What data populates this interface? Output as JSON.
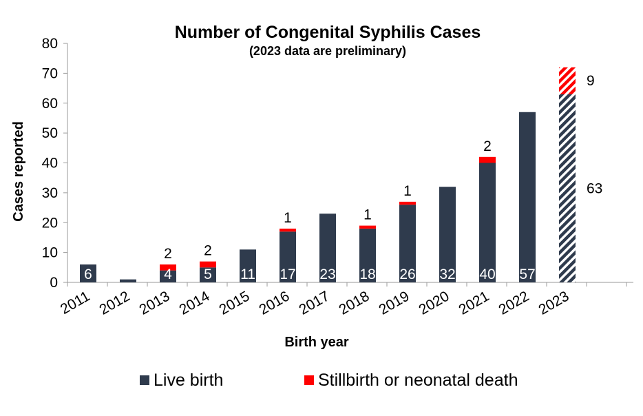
{
  "chart_data": {
    "type": "bar",
    "stacked": true,
    "title": "Number of Congenital Syphilis Cases",
    "subtitle": "(2023 data are preliminary)",
    "xlabel": "Birth year",
    "ylabel": "Cases reported",
    "ylim": [
      0,
      80
    ],
    "yticks": [
      0,
      10,
      20,
      30,
      40,
      50,
      60,
      70,
      80
    ],
    "categories": [
      "2011",
      "2012",
      "2013",
      "2014",
      "2015",
      "2016",
      "2017",
      "2018",
      "2019",
      "2020",
      "2021",
      "2022",
      "2023"
    ],
    "series": [
      {
        "name": "Live birth",
        "color": "#2f3b4d",
        "values": [
          6,
          1,
          4,
          5,
          11,
          17,
          23,
          18,
          26,
          32,
          40,
          57,
          63
        ],
        "labels": [
          "6",
          "",
          "4",
          "5",
          "11",
          "17",
          "23",
          "18",
          "26",
          "32",
          "40",
          "57",
          "63"
        ]
      },
      {
        "name": "Stillbirth or neonatal death",
        "color": "#ff0000",
        "values": [
          0,
          0,
          2,
          2,
          0,
          1,
          0,
          1,
          1,
          0,
          2,
          0,
          9
        ],
        "labels": [
          "",
          "",
          "2",
          "2",
          "",
          "1",
          "",
          "1",
          "1",
          "",
          "2",
          "",
          "9"
        ]
      }
    ],
    "preliminary_category": "2023",
    "preliminary_style": "diagonal-hatched",
    "legend_position": "bottom",
    "grid": false
  }
}
